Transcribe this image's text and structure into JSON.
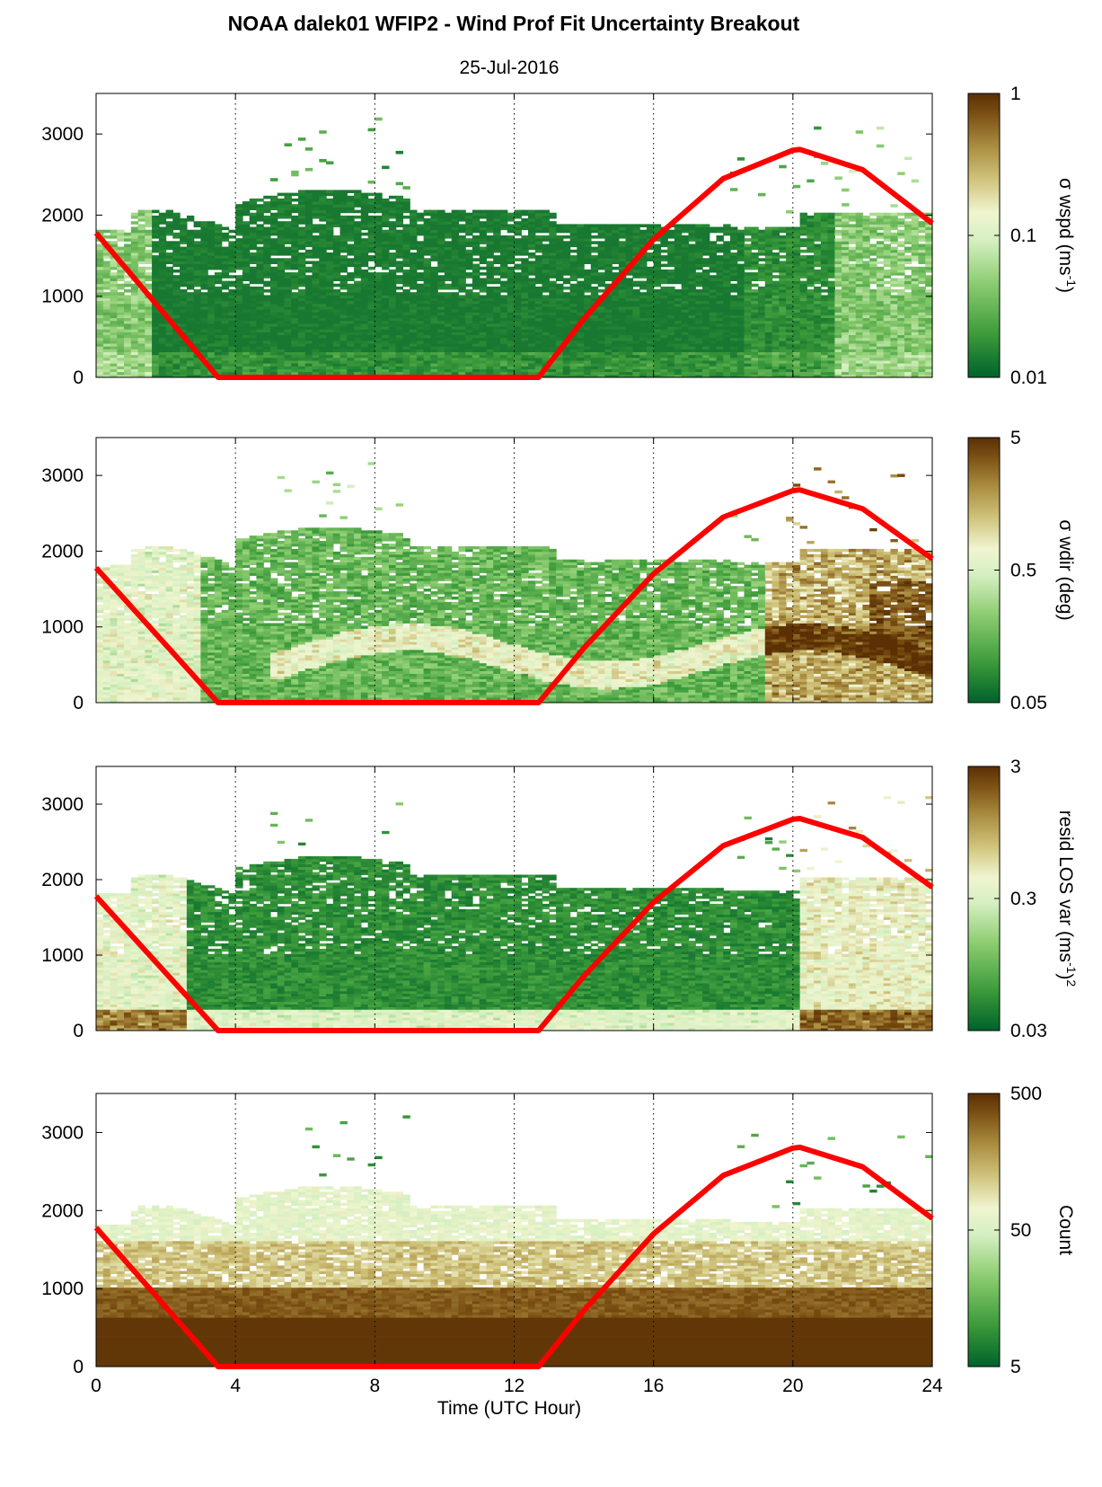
{
  "chart_data": {
    "type": "heatmap",
    "title": "NOAA dalek01 WFIP2 - Wind Prof Fit Uncertainty Breakout",
    "subtitle": "25-Jul-2016",
    "xlabel": "Time (UTC Hour)",
    "xlim": [
      0,
      24
    ],
    "x_ticks": [
      "0",
      "4",
      "8",
      "12",
      "16",
      "20",
      "24"
    ],
    "ylim": [
      0,
      3500
    ],
    "y_ticks": [
      "0",
      "1000",
      "2000",
      "3000"
    ],
    "grid": "vertical dotted lines at x ticks",
    "overlay_curve": {
      "color": "#ff0000",
      "x": [
        0,
        3.5,
        12.7,
        14,
        16,
        18,
        20,
        20.2,
        22,
        24
      ],
      "y": [
        1780,
        0,
        0,
        720,
        1700,
        2450,
        2800,
        2810,
        2560,
        1900
      ]
    },
    "colormap": [
      "#00622b",
      "#3b9a3a",
      "#8ccc70",
      "#d4efc0",
      "#f0f5d0",
      "#cfc27a",
      "#a88a3e",
      "#7a4f13",
      "#5a3004"
    ],
    "panels": [
      {
        "colorbar_label_parts": [
          "σ wspd (ms",
          "-1",
          ")"
        ],
        "colorbar_ticks": [
          "1",
          "0.1",
          "0.01"
        ],
        "colorbar_scale": "log"
      },
      {
        "colorbar_label_parts": [
          "σ wdir (deg)"
        ],
        "colorbar_ticks": [
          "5",
          "0.5",
          "0.05"
        ],
        "colorbar_scale": "log"
      },
      {
        "colorbar_label_parts": [
          "resid LOS var (ms",
          "-1",
          ")",
          "2"
        ],
        "colorbar_ticks": [
          "3",
          "0.3",
          "0.03"
        ],
        "colorbar_scale": "log"
      },
      {
        "colorbar_label_parts": [
          "Count"
        ],
        "colorbar_ticks": [
          "500",
          "50",
          "5"
        ],
        "colorbar_scale": "log"
      }
    ]
  }
}
